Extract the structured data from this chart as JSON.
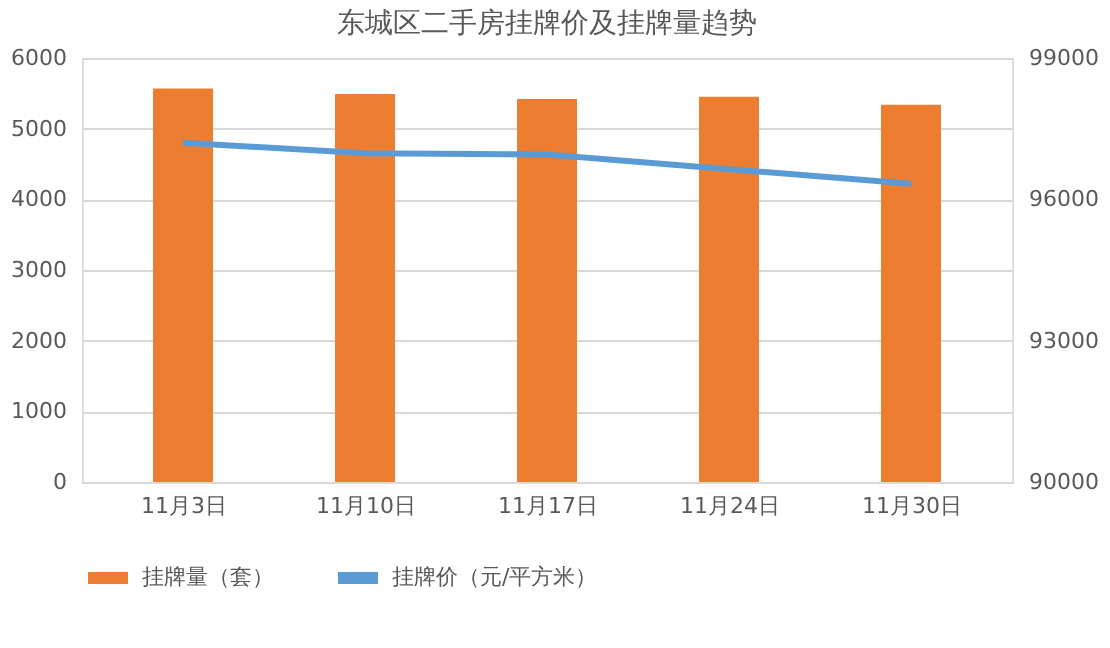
{
  "chart_data": {
    "type": "bar",
    "title": "东城区二手房挂牌价及挂牌量趋势",
    "categories": [
      "11月3日",
      "11月10日",
      "11月17日",
      "11月24日",
      "11月30日"
    ],
    "series": [
      {
        "name": "挂牌量（套）",
        "color": "#ed7d31",
        "values": [
          5570,
          5490,
          5420,
          5450,
          5340
        ]
      },
      {
        "name": "挂牌价（元/平方米）",
        "type": "line",
        "axis": "y2",
        "color": "#5b9bd5",
        "values": [
          97200,
          96980,
          96950,
          96640,
          96330
        ]
      }
    ],
    "ylim": [
      0,
      6000
    ],
    "yticks": [
      0,
      1000,
      2000,
      3000,
      4000,
      5000,
      6000
    ],
    "y2lim": [
      90000,
      99000
    ],
    "y2ticks": [
      90000,
      93000,
      96000,
      99000
    ],
    "grid": "y",
    "legend": "bottom"
  }
}
